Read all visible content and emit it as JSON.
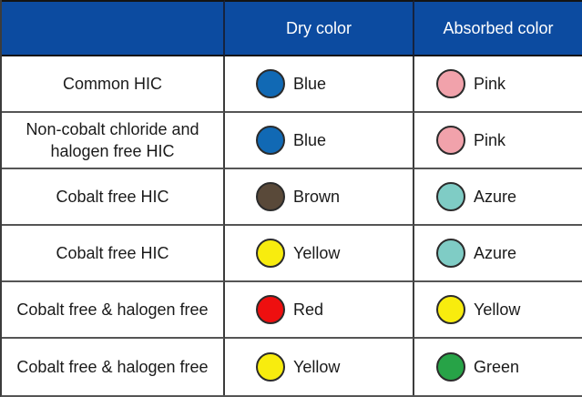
{
  "theme": {
    "header_bg": "#0C4BA0",
    "grid_line": "#555555",
    "text_color": "#1a1a1a"
  },
  "header": {
    "name_col": "",
    "dry_col": "Dry color",
    "absorbed_col": "Absorbed color"
  },
  "rows": [
    {
      "name": "Common HIC",
      "dry": {
        "label": "Blue",
        "color": "#1169B4"
      },
      "absorbed": {
        "label": "Pink",
        "color": "#F1A2AB"
      }
    },
    {
      "name": "Non-cobalt chloride and halogen free HIC",
      "dry": {
        "label": "Blue",
        "color": "#1169B4"
      },
      "absorbed": {
        "label": "Pink",
        "color": "#F1A2AB"
      }
    },
    {
      "name": "Cobalt free HIC",
      "dry": {
        "label": "Brown",
        "color": "#594939"
      },
      "absorbed": {
        "label": "Azure",
        "color": "#7FCCC5"
      }
    },
    {
      "name": "Cobalt free HIC",
      "dry": {
        "label": "Yellow",
        "color": "#F8EC0E"
      },
      "absorbed": {
        "label": "Azure",
        "color": "#7FCCC5"
      }
    },
    {
      "name": "Cobalt free & halogen free",
      "dry": {
        "label": "Red",
        "color": "#EE0F0F"
      },
      "absorbed": {
        "label": "Yellow",
        "color": "#F8EC0E"
      }
    },
    {
      "name": "Cobalt free & halogen free",
      "dry": {
        "label": "Yellow",
        "color": "#F8EC0E"
      },
      "absorbed": {
        "label": "Green",
        "color": "#27A347"
      }
    }
  ],
  "chart_data": {
    "type": "table",
    "columns": [
      "",
      "Dry color",
      "Absorbed color"
    ],
    "rows": [
      [
        "Common HIC",
        "Blue",
        "Pink"
      ],
      [
        "Non-cobalt chloride and halogen free HIC",
        "Blue",
        "Pink"
      ],
      [
        "Cobalt free HIC",
        "Brown",
        "Azure"
      ],
      [
        "Cobalt free HIC",
        "Yellow",
        "Azure"
      ],
      [
        "Cobalt free & halogen free",
        "Red",
        "Yellow"
      ],
      [
        "Cobalt free & halogen free",
        "Yellow",
        "Green"
      ]
    ],
    "swatch_colors": {
      "Blue": "#1169B4",
      "Pink": "#F1A2AB",
      "Brown": "#594939",
      "Azure": "#7FCCC5",
      "Yellow": "#F8EC0E",
      "Red": "#EE0F0F",
      "Green": "#27A347"
    },
    "layout": {
      "header_bg": "#0C4BA0",
      "header_text": "#ffffff",
      "grid": true
    }
  }
}
